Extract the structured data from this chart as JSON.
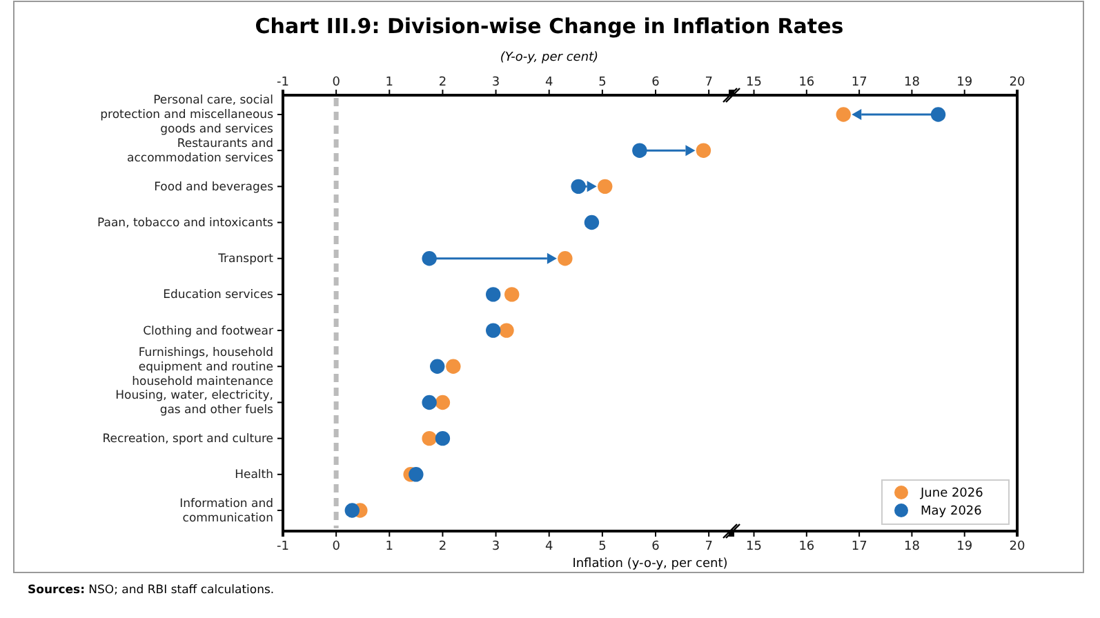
{
  "chart_data": [
    {
      "type": "scatter",
      "orientation": "horizontal",
      "title": "Chart III.9: Division-wise Change in Inflation Rates",
      "subtitle": "(Y-o-y, per cent)",
      "xlabel": "Inflation (y-o-y, per cent)",
      "annotations": [
        "Sources: NSO; and RBI staff calculations."
      ],
      "categories": [
        "Personal care, social protection and miscellaneous goods and services",
        "Restaurants and accommodation services",
        "Food and beverages",
        "Paan, tobacco and intoxicants",
        "Transport",
        "Education services",
        "Clothing and footwear",
        "Furnishings, household equipment and routine household maintenance",
        "Housing, water, electricity, gas and other fuels",
        "Recreation, sport and culture",
        "Health",
        "Information and communication"
      ],
      "series": [
        {
          "color": "#f4943f",
          "values": [
            null,
            6.9,
            5.05,
            null,
            4.3,
            3.3,
            3.2,
            2.2,
            2.0,
            1.75,
            1.4,
            0.45
          ]
        },
        {
          "color": "#1f6db5",
          "values": [
            null,
            5.7,
            4.55,
            4.8,
            1.75,
            2.95,
            2.95,
            1.9,
            1.75,
            2.0,
            1.5,
            0.3
          ]
        }
      ],
      "marker": "circle",
      "xlim": [
        -1,
        7.4
      ],
      "xticks": [
        -1,
        0,
        1,
        2,
        3,
        4,
        5,
        6,
        7
      ],
      "x2lim": [
        -1,
        7.4
      ],
      "x2ticks": [
        -1,
        0,
        1,
        2,
        3,
        4,
        5,
        6,
        7
      ],
      "ref_lines": [
        {
          "axis": "x",
          "value": 0,
          "color": "#bbbbbb",
          "line_style": "dashed"
        }
      ]
    },
    {
      "type": "scatter",
      "orientation": "horizontal",
      "tick_labels": "x",
      "categories": [
        null,
        null,
        null,
        null,
        null,
        null,
        null,
        null,
        null,
        null,
        null,
        null
      ],
      "series": [
        {
          "name": "June 2026",
          "color": "#f4943f",
          "values": [
            16.7,
            null,
            null,
            null,
            null,
            null,
            null,
            null,
            null,
            null,
            null,
            null
          ]
        },
        {
          "name": "May 2026",
          "color": "#1f6db5",
          "values": [
            18.5,
            null,
            null,
            null,
            null,
            null,
            null,
            null,
            null,
            null,
            null,
            null
          ]
        }
      ],
      "marker": "circle",
      "xlim": [
        14.6,
        20
      ],
      "xticks": [
        15,
        16,
        17,
        18,
        19,
        20
      ],
      "x2lim": [
        14.6,
        20
      ],
      "x2ticks": [
        15,
        16,
        17,
        18,
        19,
        20
      ],
      "legend": "bottom right"
    }
  ]
}
